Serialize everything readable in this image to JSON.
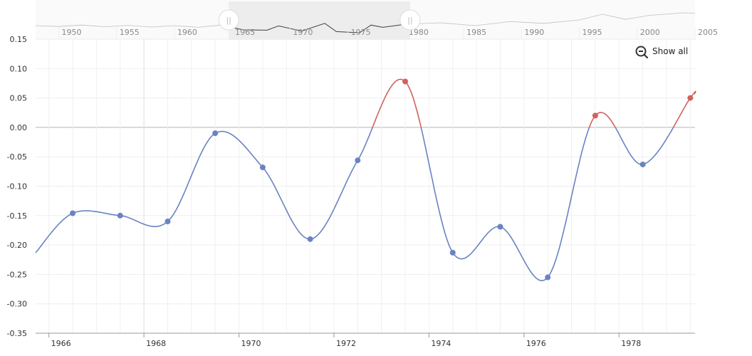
{
  "scrollbar": {
    "year_labels": [
      "1950",
      "1955",
      "1960",
      "1965",
      "1970",
      "1975",
      "1980",
      "1985",
      "1990",
      "1995",
      "2000",
      "2005"
    ],
    "selection": {
      "start": 1965,
      "end": 1980
    }
  },
  "zoom": {
    "show_all_label": "Show all",
    "icon": "zoom-out-icon"
  },
  "chart_data": {
    "type": "line",
    "title": "",
    "xlabel": "",
    "ylabel": "",
    "x_tick_labels": [
      "1966",
      "1968",
      "1970",
      "1972",
      "1974",
      "1976",
      "1978"
    ],
    "y_tick_labels": [
      "0.15",
      "0.10",
      "0.05",
      "0.00",
      "-0.05",
      "-0.10",
      "-0.15",
      "-0.20",
      "-0.25",
      "-0.30",
      "-0.35"
    ],
    "xlim": [
      1965.72,
      1979.6
    ],
    "ylim": [
      -0.35,
      0.15
    ],
    "grid": true,
    "colors": {
      "negative": "#6a83c1",
      "positive": "#d0625e"
    },
    "series": [
      {
        "values": [
          {
            "x": 1965.72,
            "y": -0.213
          },
          {
            "x": 1966.5,
            "y": -0.146
          },
          {
            "x": 1967.5,
            "y": -0.15
          },
          {
            "x": 1968.5,
            "y": -0.16
          },
          {
            "x": 1969.5,
            "y": -0.01
          },
          {
            "x": 1970.5,
            "y": -0.068
          },
          {
            "x": 1971.5,
            "y": -0.19
          },
          {
            "x": 1972.5,
            "y": -0.056
          },
          {
            "x": 1973.5,
            "y": 0.078
          },
          {
            "x": 1974.5,
            "y": -0.213
          },
          {
            "x": 1975.5,
            "y": -0.169
          },
          {
            "x": 1976.5,
            "y": -0.255
          },
          {
            "x": 1977.5,
            "y": 0.02
          },
          {
            "x": 1978.5,
            "y": -0.063
          },
          {
            "x": 1979.5,
            "y": 0.05
          },
          {
            "x": 1979.6,
            "y": 0.058
          }
        ]
      }
    ],
    "overview_series": [
      {
        "x": 1948,
        "y": 0.0
      },
      {
        "x": 1950,
        "y": -0.03
      },
      {
        "x": 1952,
        "y": 0.02
      },
      {
        "x": 1954,
        "y": -0.04
      },
      {
        "x": 1956,
        "y": 0.01
      },
      {
        "x": 1958,
        "y": -0.05
      },
      {
        "x": 1960,
        "y": 0.0
      },
      {
        "x": 1962,
        "y": -0.06
      },
      {
        "x": 1964,
        "y": 0.02
      },
      {
        "x": 1966,
        "y": -0.15
      },
      {
        "x": 1968,
        "y": -0.16
      },
      {
        "x": 1969,
        "y": -0.01
      },
      {
        "x": 1971,
        "y": -0.19
      },
      {
        "x": 1973,
        "y": 0.08
      },
      {
        "x": 1974,
        "y": -0.21
      },
      {
        "x": 1976,
        "y": -0.25
      },
      {
        "x": 1977,
        "y": 0.02
      },
      {
        "x": 1978,
        "y": -0.06
      },
      {
        "x": 1980,
        "y": 0.05
      },
      {
        "x": 1983,
        "y": 0.1
      },
      {
        "x": 1986,
        "y": 0.0
      },
      {
        "x": 1989,
        "y": 0.14
      },
      {
        "x": 1992,
        "y": 0.08
      },
      {
        "x": 1995,
        "y": 0.2
      },
      {
        "x": 1997,
        "y": 0.4
      },
      {
        "x": 1999,
        "y": 0.22
      },
      {
        "x": 2001,
        "y": 0.36
      },
      {
        "x": 2004,
        "y": 0.45
      },
      {
        "x": 2005,
        "y": 0.44
      }
    ],
    "markers": [
      1966.5,
      1967.5,
      1968.5,
      1969.5,
      1970.5,
      1971.5,
      1972.5,
      1973.5,
      1974.5,
      1975.5,
      1976.5,
      1977.5,
      1978.5,
      1979.5
    ]
  }
}
